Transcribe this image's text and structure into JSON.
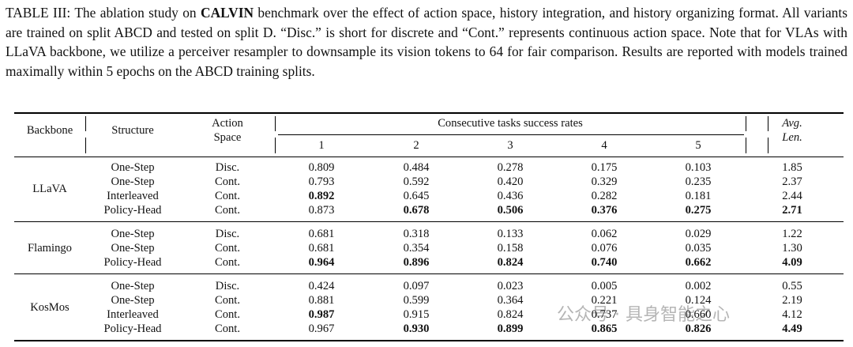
{
  "caption": {
    "label": "TABLE III:",
    "text1": "The ablation study on",
    "bold": "CALVIN",
    "text2": "benchmark over the effect of action space, history integration, and history organizing format. All variants are trained on split ABCD and tested on split D. “Disc.” is short for discrete and “Cont.” represents continuous action space. Note that for VLAs with LLaVA backbone, we utilize a perceiver resampler to downsample its vision tokens to 64 for fair comparison. Results are reported with models trained maximally within 5 epochs on the ABCD training splits."
  },
  "table": {
    "headers": {
      "backbone": "Backbone",
      "structure": "Structure",
      "action_space": "Action Space",
      "success_rates": "Consecutive tasks success rates",
      "task_columns": [
        "1",
        "2",
        "3",
        "4",
        "5"
      ],
      "avg_len": "Avg. Len."
    },
    "groups": [
      {
        "backbone": "LLaVA",
        "rows": [
          {
            "structure": "One-Step",
            "action": "Disc.",
            "values": [
              "0.809",
              "0.484",
              "0.278",
              "0.175",
              "0.103"
            ],
            "avg": "1.85",
            "bold": []
          },
          {
            "structure": "One-Step",
            "action": "Cont.",
            "values": [
              "0.793",
              "0.592",
              "0.420",
              "0.329",
              "0.235"
            ],
            "avg": "2.37",
            "bold": []
          },
          {
            "structure": "Interleaved",
            "action": "Cont.",
            "values": [
              "0.892",
              "0.645",
              "0.436",
              "0.282",
              "0.181"
            ],
            "avg": "2.44",
            "bold": [
              0
            ]
          },
          {
            "structure": "Policy-Head",
            "action": "Cont.",
            "values": [
              "0.873",
              "0.678",
              "0.506",
              "0.376",
              "0.275"
            ],
            "avg": "2.71",
            "bold": [
              1,
              2,
              3,
              4,
              5
            ]
          }
        ]
      },
      {
        "backbone": "Flamingo",
        "rows": [
          {
            "structure": "One-Step",
            "action": "Disc.",
            "values": [
              "0.681",
              "0.318",
              "0.133",
              "0.062",
              "0.029"
            ],
            "avg": "1.22",
            "bold": []
          },
          {
            "structure": "One-Step",
            "action": "Cont.",
            "values": [
              "0.681",
              "0.354",
              "0.158",
              "0.076",
              "0.035"
            ],
            "avg": "1.30",
            "bold": []
          },
          {
            "structure": "Policy-Head",
            "action": "Cont.",
            "values": [
              "0.964",
              "0.896",
              "0.824",
              "0.740",
              "0.662"
            ],
            "avg": "4.09",
            "bold": [
              0,
              1,
              2,
              3,
              4,
              5
            ]
          }
        ]
      },
      {
        "backbone": "KosMos",
        "rows": [
          {
            "structure": "One-Step",
            "action": "Disc.",
            "values": [
              "0.424",
              "0.097",
              "0.023",
              "0.005",
              "0.002"
            ],
            "avg": "0.55",
            "bold": []
          },
          {
            "structure": "One-Step",
            "action": "Cont.",
            "values": [
              "0.881",
              "0.599",
              "0.364",
              "0.221",
              "0.124"
            ],
            "avg": "2.19",
            "bold": []
          },
          {
            "structure": "Interleaved",
            "action": "Cont.",
            "values": [
              "0.987",
              "0.915",
              "0.824",
              "0.737",
              "0.660"
            ],
            "avg": "4.12",
            "bold": [
              0
            ]
          },
          {
            "structure": "Policy-Head",
            "action": "Cont.",
            "values": [
              "0.967",
              "0.930",
              "0.899",
              "0.865",
              "0.826"
            ],
            "avg": "4.49",
            "bold": [
              1,
              2,
              3,
              4,
              5
            ]
          }
        ]
      }
    ]
  },
  "watermark": "公众号 · 具身智能之心"
}
